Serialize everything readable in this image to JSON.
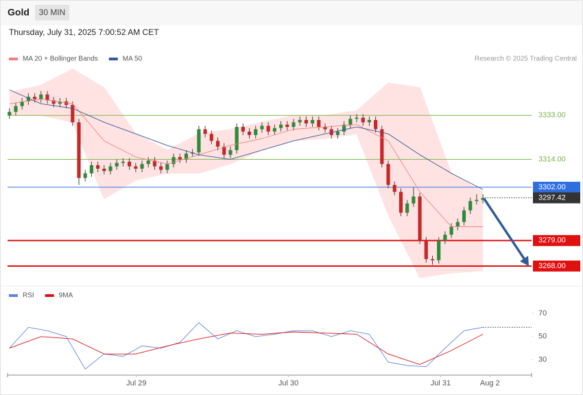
{
  "header": {
    "symbol": "Gold",
    "interval": "30 MIN",
    "timestamp": "Thursday, July 31, 2025 7:00:52 AM CET"
  },
  "chart_data": [
    {
      "type": "candlestick",
      "credit": "Research © 2025 Trading Central",
      "up_color": "#2e8b3a",
      "down_color": "#c62828",
      "x": [
        0,
        1,
        2,
        3,
        4,
        5,
        6,
        7,
        8,
        9,
        10,
        11,
        12,
        13,
        14,
        15,
        16,
        17,
        18,
        19,
        20,
        21,
        22,
        23,
        24,
        25,
        26,
        27,
        28,
        29,
        30,
        31,
        32,
        33,
        34,
        35,
        36,
        37,
        38,
        39,
        40,
        41,
        42,
        43,
        44,
        45,
        46,
        47,
        48,
        49,
        50,
        51,
        52,
        53,
        54,
        55,
        56,
        57,
        58,
        59,
        60,
        61,
        62,
        63,
        64,
        65,
        66,
        67,
        68,
        69,
        70,
        71,
        72,
        73,
        74,
        75
      ],
      "open": [
        3333,
        3334.5,
        3337,
        3339,
        3341,
        3340,
        3342,
        3339.5,
        3338,
        3339,
        3337.5,
        3330,
        3306,
        3308,
        3311.5,
        3310,
        3309,
        3311,
        3312.5,
        3313,
        3311,
        3310,
        3312,
        3313.5,
        3311,
        3309.5,
        3312,
        3315,
        3314,
        3316.5,
        3317,
        3327,
        3325,
        3322,
        3319.5,
        3316,
        3318,
        3328,
        3326,
        3324.5,
        3327,
        3328.5,
        3326,
        3327.5,
        3329,
        3328,
        3330,
        3331,
        3329.5,
        3331,
        3328,
        3327,
        3324.5,
        3326,
        3329,
        3331.5,
        3332,
        3330,
        3331,
        3327,
        3312,
        3303,
        3300,
        3291,
        3295,
        3298,
        3279,
        3271,
        3270.5,
        3279,
        3281.5,
        3285,
        3287,
        3292,
        3296,
        3296.5
      ],
      "high": [
        3336,
        3338.5,
        3340.5,
        3342.5,
        3342.5,
        3343.5,
        3343.5,
        3341,
        3340.5,
        3340.5,
        3339,
        3331.5,
        3309.5,
        3313,
        3313,
        3311.5,
        3312.5,
        3314,
        3314.5,
        3314.5,
        3312.5,
        3313.5,
        3315,
        3315,
        3312.5,
        3313.5,
        3316.5,
        3316.5,
        3318,
        3318.5,
        3328.5,
        3328.5,
        3326.5,
        3323.5,
        3321,
        3319.5,
        3329.5,
        3329.5,
        3327.5,
        3328.5,
        3330,
        3330,
        3329,
        3330.5,
        3330.5,
        3331.5,
        3332.5,
        3332.5,
        3332.5,
        3332.5,
        3329.5,
        3328.5,
        3327.5,
        3330.5,
        3333,
        3333.5,
        3333.5,
        3332.5,
        3332.5,
        3328.5,
        3313.5,
        3304.5,
        3301.5,
        3296.5,
        3302,
        3299.5,
        3280.5,
        3272.5,
        3280.5,
        3283,
        3286.5,
        3288.5,
        3293.5,
        3297.5,
        3299,
        3299
      ],
      "low": [
        3331.5,
        3333,
        3335.5,
        3337.5,
        3338.5,
        3338.5,
        3338,
        3336.5,
        3336.5,
        3336,
        3328.5,
        3303,
        3304.5,
        3306.5,
        3308.5,
        3307.5,
        3307.5,
        3309.5,
        3311,
        3309.5,
        3308.5,
        3308.5,
        3310.5,
        3309.5,
        3308,
        3308,
        3310.5,
        3312.5,
        3312.5,
        3315,
        3315.5,
        3323.5,
        3320.5,
        3318,
        3314.5,
        3314.5,
        3316.5,
        3324.5,
        3323,
        3323,
        3325.5,
        3324.5,
        3324.5,
        3326,
        3326.5,
        3326.5,
        3328.5,
        3328,
        3328,
        3326.5,
        3325.5,
        3323,
        3323,
        3324.5,
        3327.5,
        3330,
        3328.5,
        3328.5,
        3325.5,
        3310.5,
        3301.5,
        3298.5,
        3289.5,
        3289.5,
        3293.5,
        3277.5,
        3269.5,
        3268.5,
        3269,
        3277.5,
        3280,
        3283.5,
        3285.5,
        3290.5,
        3294.5,
        3295
      ],
      "close": [
        3334.5,
        3337,
        3339,
        3341,
        3340,
        3342,
        3339.5,
        3338,
        3339,
        3337.5,
        3330,
        3306,
        3308,
        3311.5,
        3310,
        3309,
        3311,
        3312.5,
        3313,
        3311,
        3310,
        3312,
        3313.5,
        3311,
        3309.5,
        3312,
        3315,
        3314,
        3316.5,
        3317,
        3327,
        3325,
        3322,
        3319.5,
        3316,
        3318,
        3328,
        3326,
        3324.5,
        3327,
        3328.5,
        3326,
        3327.5,
        3329,
        3328,
        3330,
        3331,
        3329.5,
        3331,
        3328,
        3327,
        3324.5,
        3326,
        3329,
        3331.5,
        3332,
        3330,
        3331,
        3327,
        3312,
        3303,
        3300,
        3291,
        3295,
        3298,
        3279,
        3271,
        3270.5,
        3279,
        3281.5,
        3285,
        3287,
        3292,
        3296,
        3296.5,
        3297.42
      ],
      "series": [
        {
          "name": "MA 20 + Bollinger Bands",
          "color": "#f08080",
          "band_color": "#ffe3e3",
          "x": [
            0,
            5,
            10,
            15,
            20,
            25,
            30,
            35,
            40,
            45,
            50,
            55,
            60,
            65,
            70,
            75
          ],
          "values": [
            3338,
            3340,
            3338,
            3322,
            3315,
            3312,
            3316,
            3320,
            3323,
            3327,
            3328,
            3329,
            3322,
            3300,
            3285,
            3285
          ],
          "upper": [
            3343,
            3346,
            3353,
            3345,
            3325,
            3318,
            3325,
            3327,
            3330,
            3333,
            3333,
            3335,
            3347,
            3345,
            3308,
            3300
          ],
          "lower": [
            3333,
            3333,
            3330,
            3297,
            3305,
            3308,
            3308,
            3312,
            3318,
            3322,
            3323,
            3325,
            3290,
            3263,
            3265,
            3266
          ]
        },
        {
          "name": "MA 50",
          "color": "#34589a",
          "x": [
            0,
            5,
            10,
            15,
            20,
            25,
            30,
            35,
            40,
            45,
            50,
            55,
            60,
            65,
            70,
            75
          ],
          "values": [
            3344,
            3338,
            3336,
            3330,
            3325,
            3320,
            3316,
            3314,
            3318,
            3322,
            3325,
            3328,
            3325,
            3316,
            3308,
            3301
          ]
        }
      ],
      "levels": [
        {
          "value": 3333,
          "label": "3333.00",
          "color": "#7ab648",
          "boxed": false,
          "dotted": false,
          "bold": false
        },
        {
          "value": 3314,
          "label": "3314.00",
          "color": "#7ab648",
          "boxed": false,
          "dotted": false,
          "bold": false
        },
        {
          "value": 3302,
          "label": "3302.00",
          "color": "#2f6fe0",
          "boxed": true,
          "dotted": false,
          "bold": false
        },
        {
          "value": 3297.42,
          "label": "3297.42",
          "color": "#333333",
          "boxed": true,
          "dotted": true,
          "bold": false
        },
        {
          "value": 3279,
          "label": "3279.00",
          "color": "#e01010",
          "boxed": true,
          "dotted": false,
          "bold": true
        },
        {
          "value": 3268,
          "label": "3268.00",
          "color": "#e01010",
          "boxed": true,
          "dotted": false,
          "bold": true
        }
      ],
      "xlim": [
        -0.3,
        82.7
      ],
      "ylim": [
        3260,
        3365
      ]
    },
    {
      "type": "line",
      "series": [
        {
          "name": "RSI",
          "color": "#5b86e5",
          "x": [
            0,
            3,
            6,
            9,
            12,
            15,
            18,
            21,
            24,
            27,
            30,
            33,
            36,
            39,
            42,
            45,
            48,
            51,
            54,
            57,
            60,
            63,
            66,
            69,
            72,
            75
          ],
          "values": [
            40,
            58,
            55,
            50,
            22,
            35,
            33,
            42,
            40,
            45,
            62,
            48,
            55,
            50,
            52,
            55,
            55,
            50,
            55,
            52,
            28,
            25,
            24,
            40,
            55,
            58
          ]
        },
        {
          "name": "9MA",
          "color": "#e01010",
          "x": [
            0,
            5,
            10,
            15,
            20,
            25,
            30,
            35,
            40,
            45,
            50,
            55,
            60,
            65,
            70,
            75
          ],
          "values": [
            40,
            50,
            48,
            35,
            35,
            42,
            48,
            53,
            52,
            54,
            53,
            52,
            35,
            26,
            38,
            52
          ]
        }
      ],
      "xlim": [
        -0.3,
        82.7
      ],
      "ylim": [
        18,
        80
      ],
      "yticks": [
        30,
        50,
        70
      ],
      "xticks": [
        {
          "value": 20.1,
          "label": "Jul 29"
        },
        {
          "value": 44.2,
          "label": "Jul 30"
        },
        {
          "value": 68.3,
          "label": "Jul 31"
        },
        {
          "value": 76.1,
          "label": "Aug 2"
        }
      ]
    }
  ]
}
